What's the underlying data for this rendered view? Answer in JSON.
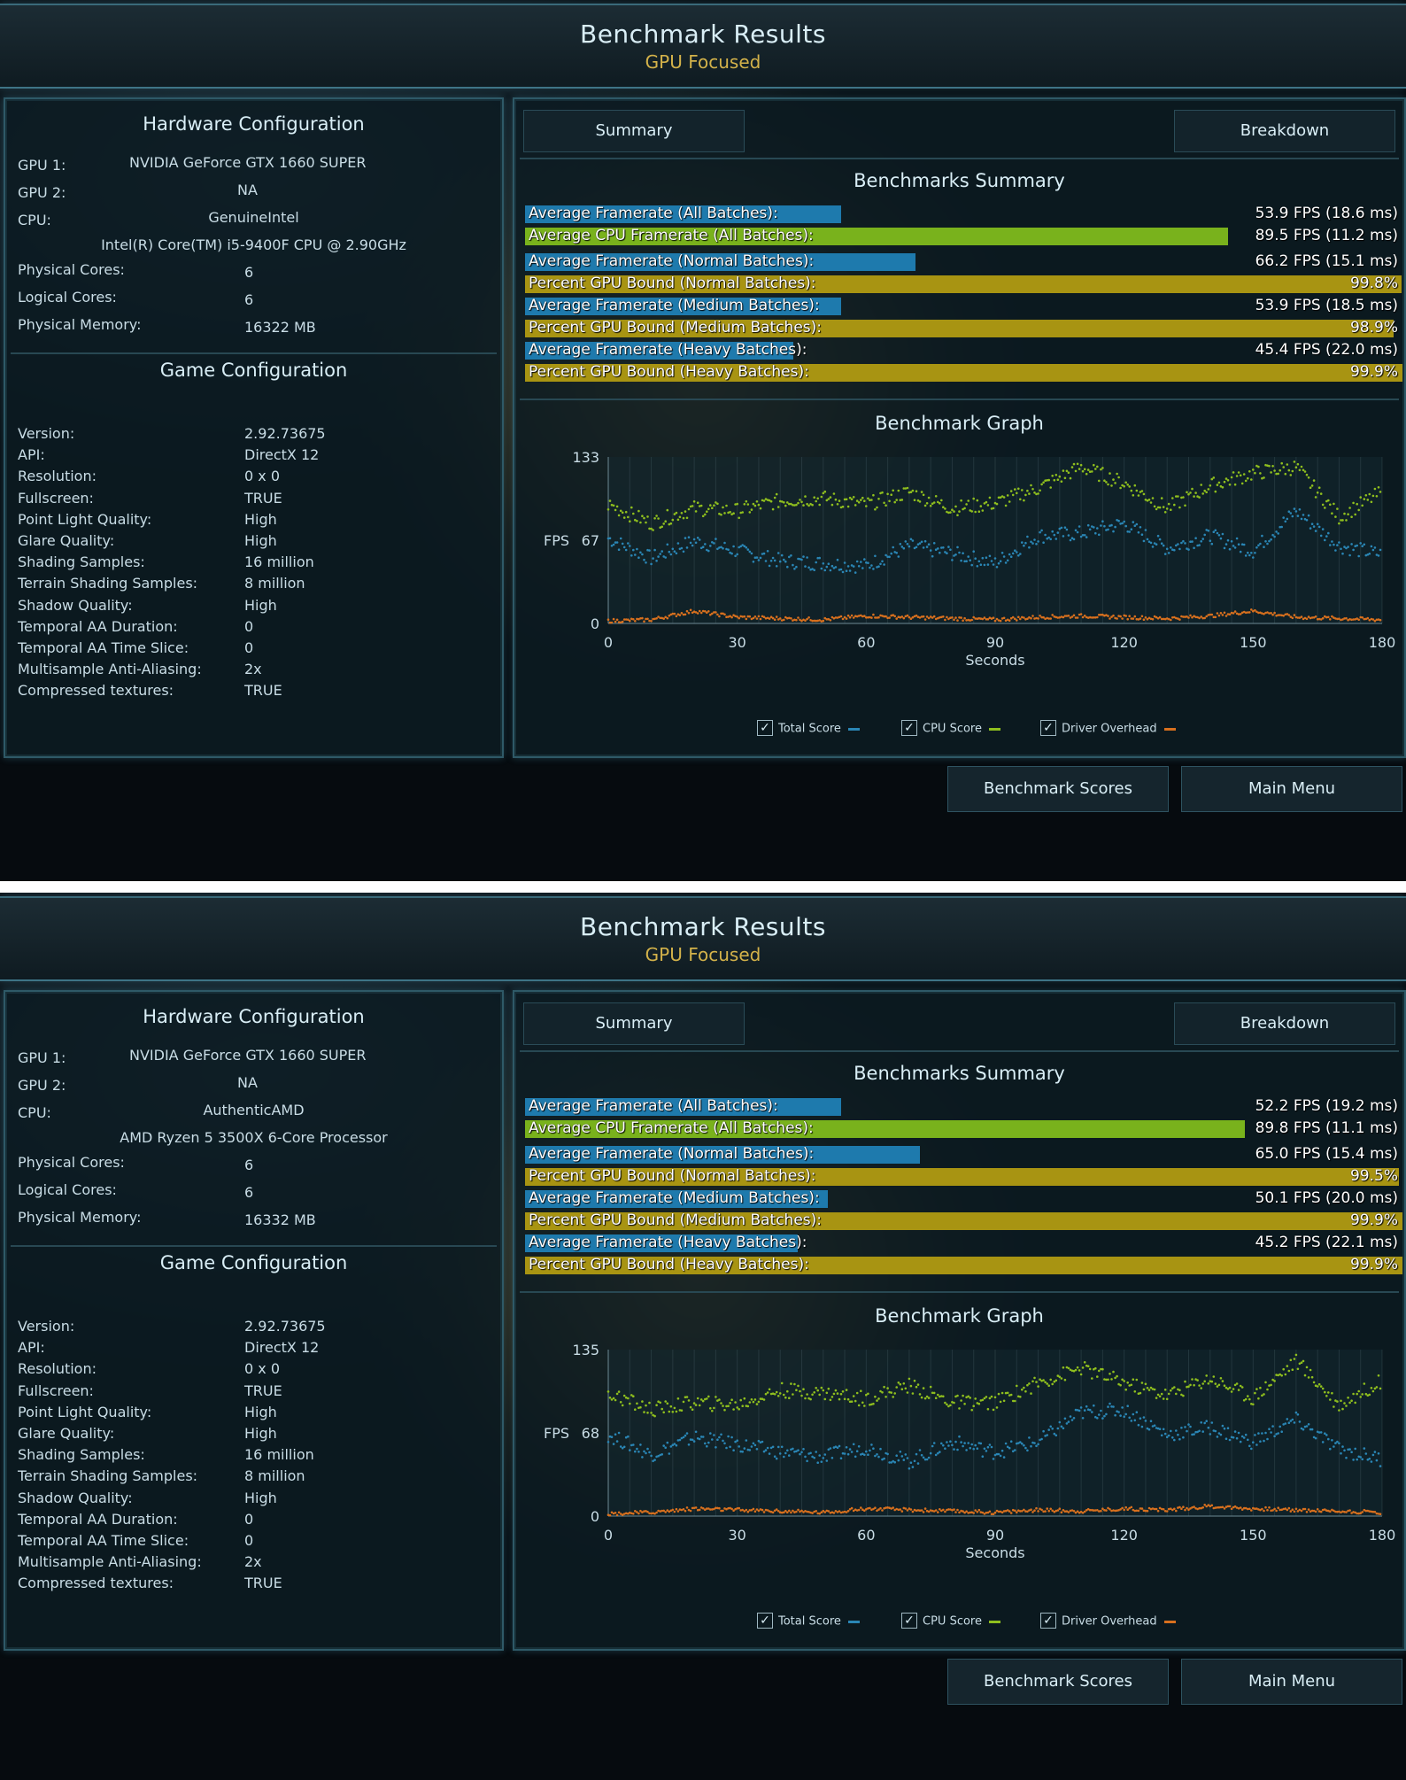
{
  "screens": [
    {
      "header": {
        "title": "Benchmark Results",
        "subtitle": "GPU Focused"
      },
      "hardware": {
        "title": "Hardware Configuration",
        "gpu1_label": "GPU 1:",
        "gpu1": "NVIDIA GeForce GTX 1660 SUPER",
        "gpu2_label": "GPU 2:",
        "gpu2": "NA",
        "cpu_label": "CPU:",
        "cpu_vendor": "GenuineIntel",
        "cpu_model": "Intel(R) Core(TM) i5-9400F CPU @ 2.90GHz",
        "physical_cores_label": "Physical Cores:",
        "physical_cores": "6",
        "logical_cores_label": "Logical Cores:",
        "logical_cores": "6",
        "memory_label": "Physical Memory:",
        "memory": "16322  MB"
      },
      "game": {
        "title": "Game Configuration",
        "rows": [
          {
            "label": "Version:",
            "value": "2.92.73675"
          },
          {
            "label": "API:",
            "value": "DirectX 12"
          },
          {
            "label": "Resolution:",
            "value": "0 x 0"
          },
          {
            "label": "Fullscreen:",
            "value": "TRUE"
          },
          {
            "label": "Point Light Quality:",
            "value": "High"
          },
          {
            "label": "Glare Quality:",
            "value": "High"
          },
          {
            "label": "Shading Samples:",
            "value": "16 million"
          },
          {
            "label": "Terrain Shading Samples:",
            "value": "8 million"
          },
          {
            "label": "Shadow Quality:",
            "value": "High"
          },
          {
            "label": "Temporal AA Duration:",
            "value": "0"
          },
          {
            "label": "Temporal AA Time Slice:",
            "value": "0"
          },
          {
            "label": "Multisample Anti-Aliasing:",
            "value": "2x"
          },
          {
            "label": "Compressed textures:",
            "value": "TRUE"
          }
        ]
      },
      "tabs": {
        "summary": "Summary",
        "breakdown": "Breakdown"
      },
      "summary": {
        "title": "Benchmarks Summary",
        "rows": [
          {
            "label": "Average Framerate (All Batches):",
            "value": "53.9 FPS (18.6 ms)",
            "fill": 0.36,
            "color": "#1e7aad",
            "bg": "transparent"
          },
          {
            "label": "Average CPU Framerate (All Batches):",
            "value": "89.5 FPS (11.2 ms)",
            "fill": 0.8,
            "color": "#79b21c",
            "bg": "transparent"
          },
          {
            "label": "Average Framerate (Normal Batches):",
            "value": "66.2 FPS (15.1 ms)",
            "fill": 0.445,
            "color": "#1e7aad",
            "bg": "transparent"
          },
          {
            "label": "Percent GPU Bound (Normal Batches):",
            "value": "99.8%",
            "fill": 0.998,
            "color": "#a89412",
            "bg": "transparent"
          },
          {
            "label": "Average Framerate (Medium Batches):",
            "value": "53.9 FPS (18.5 ms)",
            "fill": 0.36,
            "color": "#1e7aad",
            "bg": "transparent"
          },
          {
            "label": "Percent GPU Bound (Medium Batches):",
            "value": "98.9%",
            "fill": 0.989,
            "color": "#a89412",
            "bg": "transparent"
          },
          {
            "label": "Average Framerate (Heavy Batches):",
            "value": "45.4 FPS (22.0 ms)",
            "fill": 0.305,
            "color": "#1e7aad",
            "bg": "transparent"
          },
          {
            "label": "Percent GPU Bound (Heavy Batches):",
            "value": "99.9%",
            "fill": 0.999,
            "color": "#a89412",
            "bg": "transparent"
          }
        ]
      },
      "graph": {
        "title": "Benchmark Graph",
        "ylabel": "FPS",
        "ymax": "133",
        "ymid": "67",
        "ymin": "0",
        "ymax_value": 133,
        "xticks": [
          "0",
          "30",
          "60",
          "90",
          "120",
          "150",
          "180"
        ],
        "xlabel": "Seconds",
        "legend": {
          "total": "Total Score",
          "cpu": "CPU Score",
          "driver": "Driver Overhead"
        },
        "colors": {
          "total": "#2a86b5",
          "cpu": "#8fbf1e",
          "driver": "#d8701e"
        }
      },
      "buttons": {
        "scores": "Benchmark Scores",
        "menu": "Main Menu"
      },
      "chart_data": {
        "type": "scatter",
        "title": "Benchmark Graph",
        "xlabel": "Seconds",
        "ylabel": "FPS",
        "xlim": [
          0,
          180
        ],
        "ylim": [
          0,
          133
        ],
        "x": [
          0,
          10,
          20,
          30,
          40,
          50,
          60,
          70,
          80,
          90,
          100,
          110,
          120,
          130,
          140,
          150,
          160,
          170,
          180
        ],
        "series": [
          {
            "name": "Total Score",
            "values": [
              68,
              52,
              66,
              58,
              50,
              48,
              46,
              62,
              56,
              48,
              70,
              72,
              80,
              60,
              70,
              58,
              90,
              62,
              55
            ]
          },
          {
            "name": "CPU Score",
            "values": [
              95,
              80,
              92,
              90,
              98,
              100,
              95,
              105,
              92,
              96,
              108,
              125,
              112,
              92,
              110,
              120,
              125,
              85,
              105
            ]
          },
          {
            "name": "Driver Overhead",
            "values": [
              2,
              3,
              10,
              5,
              4,
              3,
              6,
              5,
              4,
              3,
              5,
              6,
              5,
              4,
              6,
              10,
              5,
              4,
              3
            ]
          }
        ]
      }
    },
    {
      "header": {
        "title": "Benchmark Results",
        "subtitle": "GPU Focused"
      },
      "hardware": {
        "title": "Hardware Configuration",
        "gpu1_label": "GPU 1:",
        "gpu1": "NVIDIA GeForce GTX 1660 SUPER",
        "gpu2_label": "GPU 2:",
        "gpu2": "NA",
        "cpu_label": "CPU:",
        "cpu_vendor": "AuthenticAMD",
        "cpu_model": "AMD Ryzen 5 3500X 6-Core Processor",
        "physical_cores_label": "Physical Cores:",
        "physical_cores": "6",
        "logical_cores_label": "Logical Cores:",
        "logical_cores": "6",
        "memory_label": "Physical Memory:",
        "memory": "16332  MB"
      },
      "game": {
        "title": "Game Configuration",
        "rows": [
          {
            "label": "Version:",
            "value": "2.92.73675"
          },
          {
            "label": "API:",
            "value": "DirectX 12"
          },
          {
            "label": "Resolution:",
            "value": "0 x 0"
          },
          {
            "label": "Fullscreen:",
            "value": "TRUE"
          },
          {
            "label": "Point Light Quality:",
            "value": "High"
          },
          {
            "label": "Glare Quality:",
            "value": "High"
          },
          {
            "label": "Shading Samples:",
            "value": "16 million"
          },
          {
            "label": "Terrain Shading Samples:",
            "value": "8 million"
          },
          {
            "label": "Shadow Quality:",
            "value": "High"
          },
          {
            "label": "Temporal AA Duration:",
            "value": "0"
          },
          {
            "label": "Temporal AA Time Slice:",
            "value": "0"
          },
          {
            "label": "Multisample Anti-Aliasing:",
            "value": "2x"
          },
          {
            "label": "Compressed textures:",
            "value": "TRUE"
          }
        ]
      },
      "tabs": {
        "summary": "Summary",
        "breakdown": "Breakdown"
      },
      "summary": {
        "title": "Benchmarks Summary",
        "rows": [
          {
            "label": "Average Framerate (All Batches):",
            "value": "52.2 FPS (19.2 ms)",
            "fill": 0.36,
            "color": "#1e7aad",
            "bg": "transparent"
          },
          {
            "label": "Average CPU Framerate (All Batches):",
            "value": "89.8 FPS (11.1 ms)",
            "fill": 0.82,
            "color": "#79b21c",
            "bg": "transparent"
          },
          {
            "label": "Average Framerate (Normal Batches):",
            "value": "65.0 FPS (15.4 ms)",
            "fill": 0.45,
            "color": "#1e7aad",
            "bg": "transparent"
          },
          {
            "label": "Percent GPU Bound (Normal Batches):",
            "value": "99.5%",
            "fill": 0.995,
            "color": "#a89412",
            "bg": "transparent"
          },
          {
            "label": "Average Framerate (Medium Batches):",
            "value": "50.1 FPS (20.0 ms)",
            "fill": 0.345,
            "color": "#1e7aad",
            "bg": "transparent"
          },
          {
            "label": "Percent GPU Bound (Medium Batches):",
            "value": "99.9%",
            "fill": 0.999,
            "color": "#a89412",
            "bg": "transparent"
          },
          {
            "label": "Average Framerate (Heavy Batches):",
            "value": "45.2 FPS (22.1 ms)",
            "fill": 0.31,
            "color": "#1e7aad",
            "bg": "transparent"
          },
          {
            "label": "Percent GPU Bound (Heavy Batches):",
            "value": "99.9%",
            "fill": 0.999,
            "color": "#a89412",
            "bg": "transparent"
          }
        ]
      },
      "graph": {
        "title": "Benchmark Graph",
        "ylabel": "FPS",
        "ymax": "135",
        "ymid": "68",
        "ymin": "0",
        "ymax_value": 135,
        "xticks": [
          "0",
          "30",
          "60",
          "90",
          "120",
          "150",
          "180"
        ],
        "xlabel": "Seconds",
        "legend": {
          "total": "Total Score",
          "cpu": "CPU Score",
          "driver": "Driver Overhead"
        },
        "colors": {
          "total": "#2a86b5",
          "cpu": "#8fbf1e",
          "driver": "#d8701e"
        }
      },
      "buttons": {
        "scores": "Benchmark Scores",
        "menu": "Main Menu"
      },
      "chart_data": {
        "type": "scatter",
        "title": "Benchmark Graph",
        "xlabel": "Seconds",
        "ylabel": "FPS",
        "xlim": [
          0,
          180
        ],
        "ylim": [
          0,
          135
        ],
        "x": [
          0,
          10,
          20,
          30,
          40,
          50,
          60,
          70,
          80,
          90,
          100,
          110,
          120,
          130,
          140,
          150,
          160,
          170,
          180
        ],
        "series": [
          {
            "name": "Total Score",
            "values": [
              66,
              50,
              64,
              58,
              52,
              48,
              56,
              44,
              60,
              52,
              60,
              84,
              86,
              66,
              72,
              60,
              78,
              54,
              46
            ]
          },
          {
            "name": "CPU Score",
            "values": [
              100,
              86,
              92,
              90,
              102,
              100,
              95,
              106,
              92,
              92,
              108,
              120,
              108,
              98,
              112,
              96,
              126,
              90,
              110
            ]
          },
          {
            "name": "Driver Overhead",
            "values": [
              2,
              3,
              6,
              5,
              4,
              3,
              6,
              5,
              4,
              3,
              5,
              4,
              6,
              5,
              8,
              6,
              5,
              4,
              3
            ]
          }
        ]
      }
    }
  ]
}
